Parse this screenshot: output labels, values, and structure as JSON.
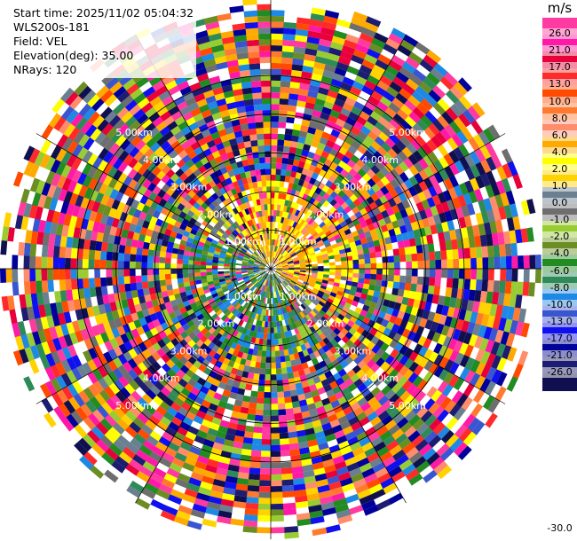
{
  "header": {
    "start_time": "Start time: 2025/11/02 05:04:32",
    "instrument": "WLS200s-181",
    "field": "Field: VEL",
    "elevation": "Elevation(deg): 35.00",
    "nrays": "NRays: 120"
  },
  "colorbar": {
    "unit": "m/s",
    "tick_labels": [
      "26.0",
      "21.0",
      "17.0",
      "13.0",
      "10.0",
      "8.0",
      "6.0",
      "4.0",
      "2.0",
      "1.0",
      "0.0",
      "-1.0",
      "-2.0",
      "-4.0",
      "-6.0",
      "-8.0",
      "-10.0",
      "-13.0",
      "-17.0",
      "-21.0",
      "-26.0",
      "-30.0"
    ],
    "bins": [
      {
        "low": 26,
        "high": 30,
        "color": "#ff3aa0"
      },
      {
        "low": 21,
        "high": 26,
        "color": "#ff1aa6"
      },
      {
        "low": 17,
        "high": 21,
        "color": "#e8003a"
      },
      {
        "low": 13,
        "high": 17,
        "color": "#ff2a2a"
      },
      {
        "low": 10,
        "high": 13,
        "color": "#ff4a00"
      },
      {
        "low": 8,
        "high": 10,
        "color": "#ff7a30"
      },
      {
        "low": 6,
        "high": 8,
        "color": "#ff8c6a"
      },
      {
        "low": 4,
        "high": 6,
        "color": "#ffaa00"
      },
      {
        "low": 2,
        "high": 4,
        "color": "#ffff00"
      },
      {
        "low": 1,
        "high": 2,
        "color": "#ffd200"
      },
      {
        "low": 0,
        "high": 1,
        "color": "#6a7f90"
      },
      {
        "low": -1,
        "high": 0,
        "color": "#6e6e6e"
      },
      {
        "low": -2,
        "high": -1,
        "color": "#99cc33"
      },
      {
        "low": -4,
        "high": -2,
        "color": "#6b8e23"
      },
      {
        "low": -6,
        "high": -4,
        "color": "#228b22"
      },
      {
        "low": -8,
        "high": -6,
        "color": "#2e8b57"
      },
      {
        "low": -10,
        "high": -8,
        "color": "#1e88e5"
      },
      {
        "low": -13,
        "high": -10,
        "color": "#3a55d0"
      },
      {
        "low": -17,
        "high": -13,
        "color": "#1010ee"
      },
      {
        "low": -21,
        "high": -17,
        "color": "#00009a"
      },
      {
        "low": -26,
        "high": -21,
        "color": "#1c1c70"
      },
      {
        "low": -30,
        "high": -26,
        "color": "#101050"
      }
    ]
  },
  "chart_data": {
    "type": "heatmap",
    "projection": "polar PPI",
    "field": "VEL",
    "units": "m/s",
    "nrays": 120,
    "range_max_km": 7.0,
    "range_ring_labels": [
      "1.00km",
      "2.00km",
      "3.00km",
      "4.00km",
      "5.00km"
    ],
    "near_field_pattern": "northeast and east sectors mostly positive 2-6 m/s (yellow/orange); west and southwest sectors negative 0 to -10 m/s (green/blue); beyond about 2 km values noisy across full range -30 to 26 m/s"
  }
}
